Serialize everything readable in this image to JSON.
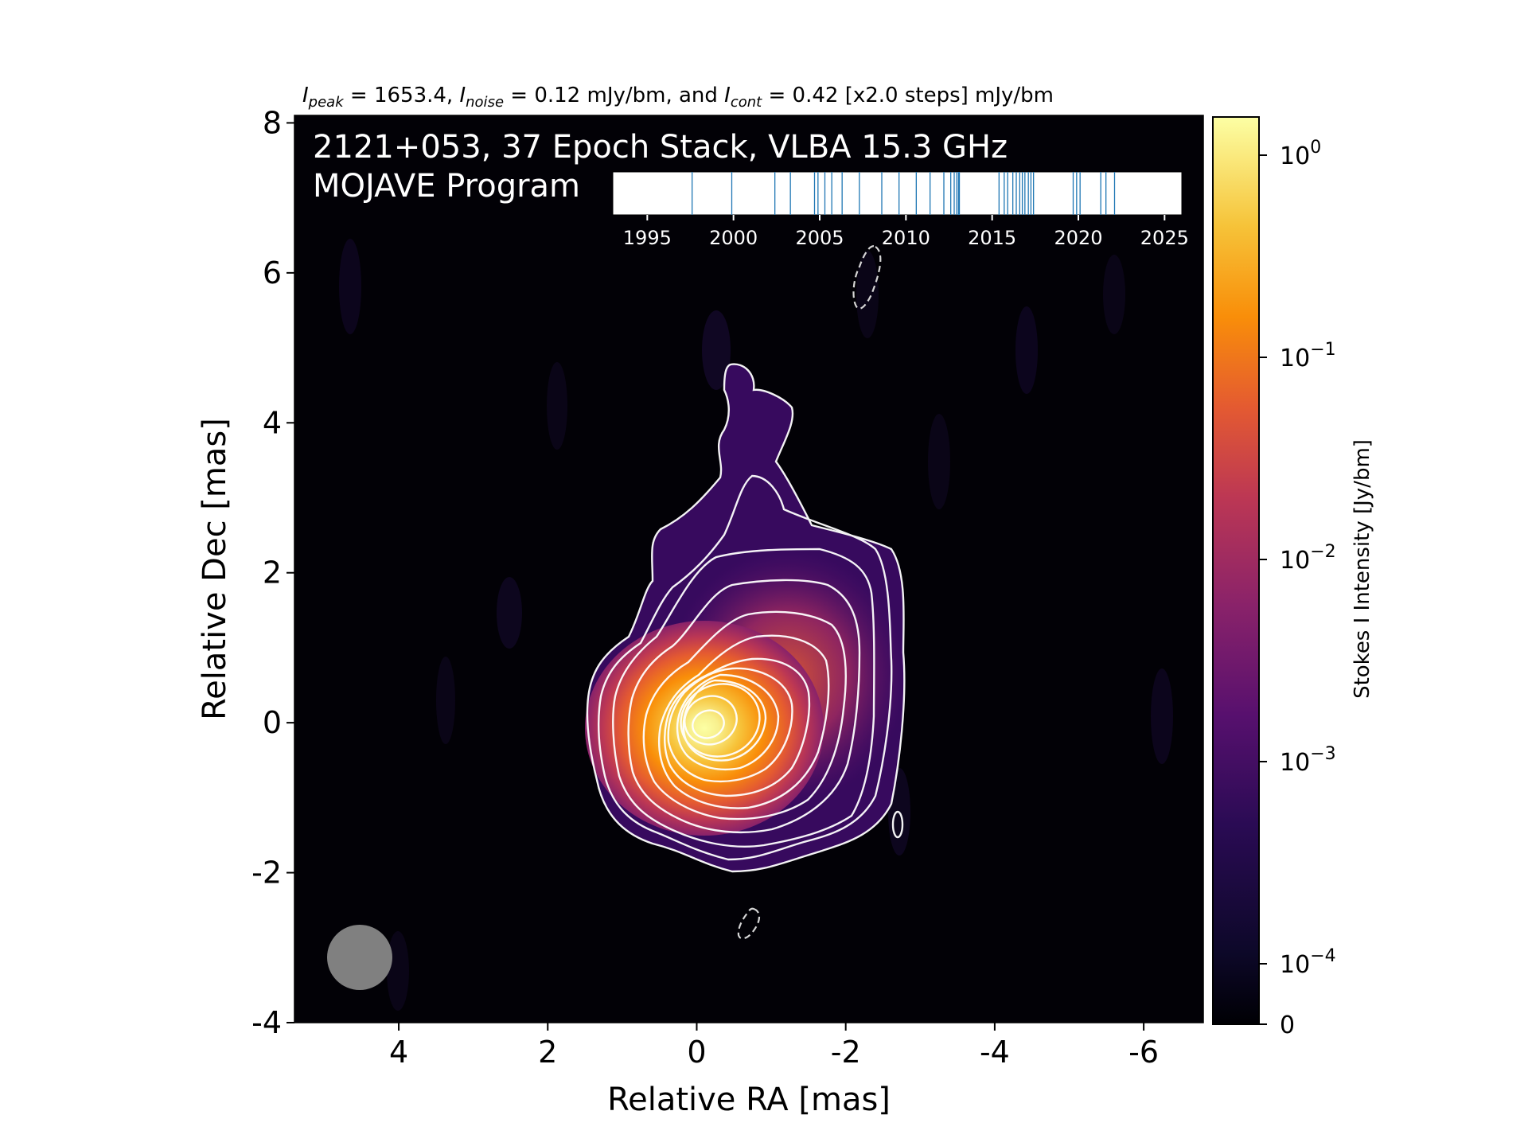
{
  "header": {
    "peak_label": "I",
    "peak_sub": "peak",
    "peak_value": " = 1653.4, ",
    "noise_label": "I",
    "noise_sub": "noise",
    "noise_value": " = 0.12 mJy/bm, and ",
    "cont_label": "I",
    "cont_sub": "cont",
    "cont_value": " = 0.42 [x2.0 steps] mJy/bm"
  },
  "overlay": {
    "line1": "2121+053, 37 Epoch Stack, VLBA 15.3 GHz",
    "line2": "MOJAVE Program"
  },
  "chart_data": [
    {
      "type": "heatmap",
      "xlabel": "Relative RA [mas]",
      "ylabel": "Relative Dec [mas]",
      "xlim": [
        5.4,
        -6.8
      ],
      "ylim": [
        -4,
        8.1
      ],
      "x_ticks": [
        4,
        2,
        0,
        -2,
        -4,
        -6
      ],
      "x_tick_labels": [
        "4",
        "2",
        "0",
        "-2",
        "-4",
        "-6"
      ],
      "y_ticks": [
        8,
        6,
        4,
        2,
        0,
        -2,
        -4
      ],
      "y_tick_labels": [
        "8",
        "6",
        "4",
        "2",
        "0",
        "-2",
        "-4"
      ],
      "colormap": "inferno",
      "peak_position": [
        0,
        0
      ],
      "contour_color": "#ffffff",
      "contours": {
        "peak_mJy_per_bm": 1653.4,
        "noise_mJy_per_bm": 0.12,
        "lowest_mJy_per_bm": 0.42,
        "step_factor": 2.0,
        "levels_count": 13
      },
      "negative_contours_dashed": true,
      "beam_color": "#808080"
    },
    {
      "type": "scatter",
      "name": "epoch-timeline",
      "xlim": [
        1993,
        2026
      ],
      "x_ticks": [
        1995,
        2000,
        2005,
        2010,
        2015,
        2020,
        2025
      ],
      "x_tick_labels": [
        "1995",
        "2000",
        "2005",
        "2010",
        "2015",
        "2020",
        "2025"
      ],
      "epochs": [
        1997.6,
        1999.9,
        2002.4,
        2003.3,
        2004.7,
        2004.9,
        2005.3,
        2005.7,
        2006.3,
        2007.3,
        2008.6,
        2009.6,
        2010.6,
        2011.4,
        2012.2,
        2012.6,
        2012.8,
        2012.95,
        2013.1,
        2015.4,
        2015.7,
        2015.9,
        2016.2,
        2016.4,
        2016.6,
        2016.9,
        2017.1,
        2017.4,
        2019.7,
        2019.9,
        2020.1,
        2021.3,
        2021.6,
        2022.1,
        2013.05,
        2016.75,
        2017.25
      ],
      "tick_color": "#1f77b4",
      "background": "#ffffff"
    },
    {
      "type": "heatmap",
      "name": "colorbar",
      "label": "Stokes I Intensity [Jy/bm]",
      "scale": "log",
      "range": [
        0,
        1.6534
      ],
      "ticks": [
        0,
        0.0001,
        0.001,
        0.01,
        0.1,
        1
      ],
      "tick_base": [
        "0",
        "10",
        "10",
        "10",
        "10",
        "10"
      ],
      "tick_exp": [
        "",
        "−4",
        "−3",
        "−2",
        "−1",
        "0"
      ],
      "colormap": "inferno"
    }
  ]
}
